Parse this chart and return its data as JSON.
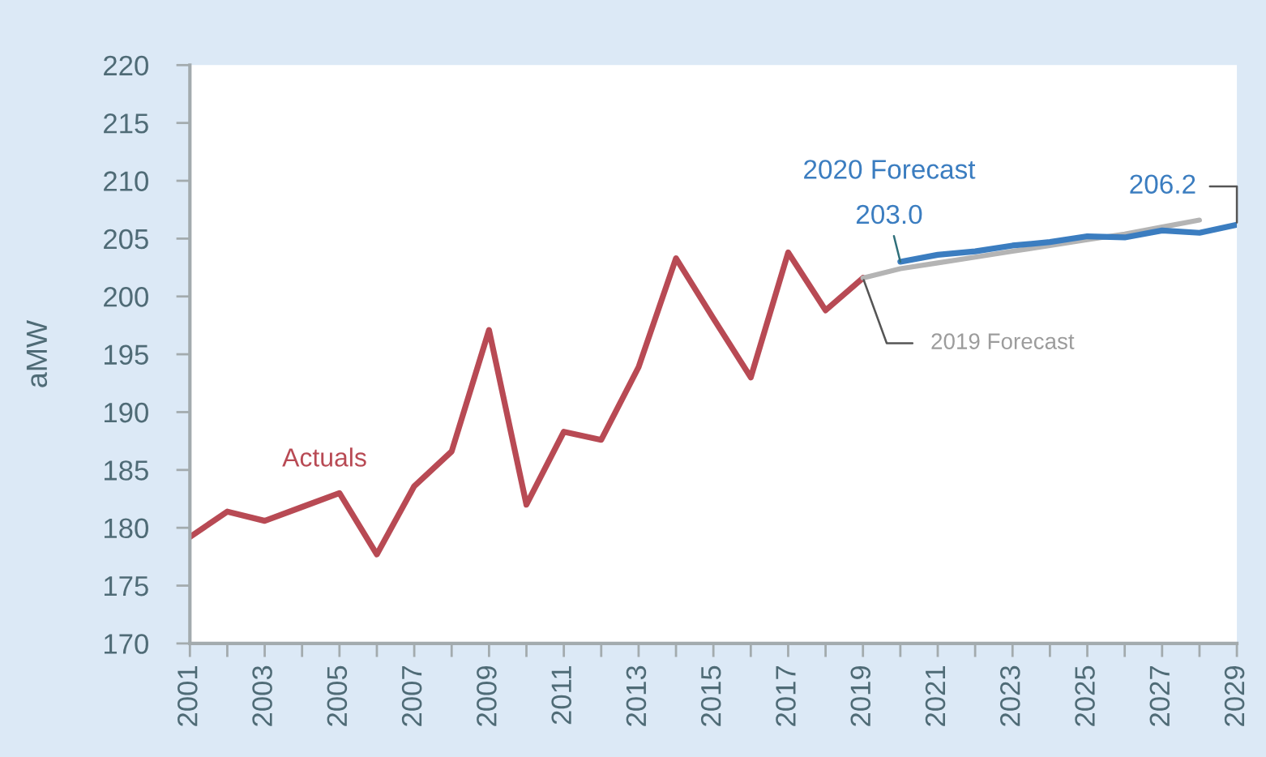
{
  "chart_data": {
    "type": "line",
    "ylabel": "aMW",
    "xlim": [
      2001,
      2029
    ],
    "xticks": [
      2001,
      {
        "value": 2002,
        "label": null
      },
      2003,
      {
        "value": 2004,
        "label": null
      },
      2005,
      {
        "value": 2006,
        "label": null
      },
      2007,
      {
        "value": 2008,
        "label": null
      },
      2009,
      {
        "value": 2010,
        "label": null
      },
      2011,
      {
        "value": 2012,
        "label": null
      },
      2013,
      {
        "value": 2014,
        "label": null
      },
      2015,
      {
        "value": 2016,
        "label": null
      },
      2017,
      {
        "value": 2018,
        "label": null
      },
      2019,
      {
        "value": 2020,
        "label": null
      },
      2021,
      {
        "value": 2022,
        "label": null
      },
      2023,
      {
        "value": 2024,
        "label": null
      },
      2025,
      {
        "value": 2026,
        "label": null
      },
      2027,
      {
        "value": 2028,
        "label": null
      },
      2029
    ],
    "ylim": [
      170,
      220
    ],
    "yticks": [
      170,
      175,
      180,
      185,
      190,
      195,
      200,
      205,
      210,
      215,
      220
    ],
    "grid": false,
    "legend": false,
    "marker": "none",
    "line_style": "solid",
    "series": [
      {
        "name": "Actuals",
        "color": "#b84a54",
        "x": [
          2001,
          2002,
          2003,
          2004,
          2005,
          2006,
          2007,
          2008,
          2009,
          2010,
          2011,
          2012,
          2013,
          2014,
          2015,
          2016,
          2017,
          2018,
          2019
        ],
        "values": [
          179.2,
          181.4,
          180.6,
          181.8,
          183.0,
          177.7,
          183.6,
          186.6,
          197.1,
          182.0,
          188.3,
          187.6,
          193.9,
          203.3,
          198.1,
          193.0,
          203.8,
          198.8,
          201.6
        ]
      },
      {
        "name": "2019 Forecast",
        "color": "#b4b4b4",
        "x": [
          2019,
          2020,
          2021,
          2022,
          2023,
          2024,
          2025,
          2026,
          2027,
          2028
        ],
        "values": [
          201.6,
          202.4,
          202.9,
          203.4,
          203.9,
          204.4,
          204.9,
          205.4,
          206.0,
          206.6
        ]
      },
      {
        "name": "2020 Forecast",
        "color": "#3b7dc0",
        "x": [
          2020,
          2021,
          2022,
          2023,
          2024,
          2025,
          2026,
          2027,
          2028,
          2029
        ],
        "values": [
          203.0,
          203.6,
          203.9,
          204.4,
          204.7,
          205.2,
          205.1,
          205.7,
          205.5,
          206.2
        ],
        "value_labels": [
          "203.0",
          null,
          null,
          null,
          null,
          null,
          null,
          null,
          null,
          "206.2"
        ]
      }
    ]
  }
}
